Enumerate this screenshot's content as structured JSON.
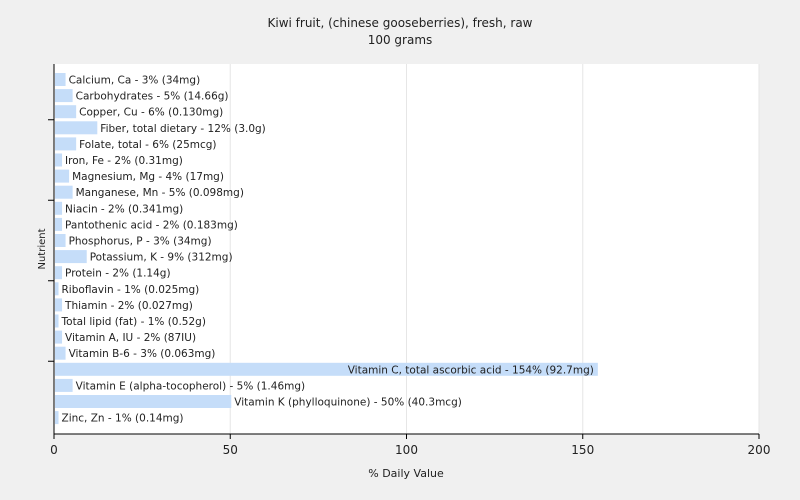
{
  "chart_data": {
    "type": "bar",
    "orientation": "horizontal",
    "title": "Kiwi fruit, (chinese gooseberries), fresh, raw",
    "subtitle": "100 grams",
    "xlabel": "% Daily Value",
    "ylabel": "Nutrient",
    "xlim": [
      0,
      200
    ],
    "xticks": [
      0,
      50,
      100,
      150,
      200
    ],
    "grid": true,
    "legend": "none",
    "bar_color": "#c5ddf9",
    "categories": [
      "Calcium, Ca - 3% (34mg)",
      "Carbohydrates - 5% (14.66g)",
      "Copper, Cu - 6% (0.130mg)",
      "Fiber, total dietary - 12% (3.0g)",
      "Folate, total - 6% (25mcg)",
      "Iron, Fe - 2% (0.31mg)",
      "Magnesium, Mg - 4% (17mg)",
      "Manganese, Mn - 5% (0.098mg)",
      "Niacin - 2% (0.341mg)",
      "Pantothenic acid - 2% (0.183mg)",
      "Phosphorus, P - 3% (34mg)",
      "Potassium, K - 9% (312mg)",
      "Protein - 2% (1.14g)",
      "Riboflavin - 1% (0.025mg)",
      "Thiamin - 2% (0.027mg)",
      "Total lipid (fat) - 1% (0.52g)",
      "Vitamin A, IU - 2% (87IU)",
      "Vitamin B-6 - 3% (0.063mg)",
      "Vitamin C, total ascorbic acid - 154% (92.7mg)",
      "Vitamin E (alpha-tocopherol) - 5% (1.46mg)",
      "Vitamin K (phylloquinone) - 50% (40.3mcg)",
      "Zinc, Zn - 1% (0.14mg)"
    ],
    "values": [
      3,
      5,
      6,
      12,
      6,
      2,
      4,
      5,
      2,
      2,
      3,
      9,
      2,
      1,
      2,
      1,
      2,
      3,
      154,
      5,
      50,
      1
    ]
  }
}
